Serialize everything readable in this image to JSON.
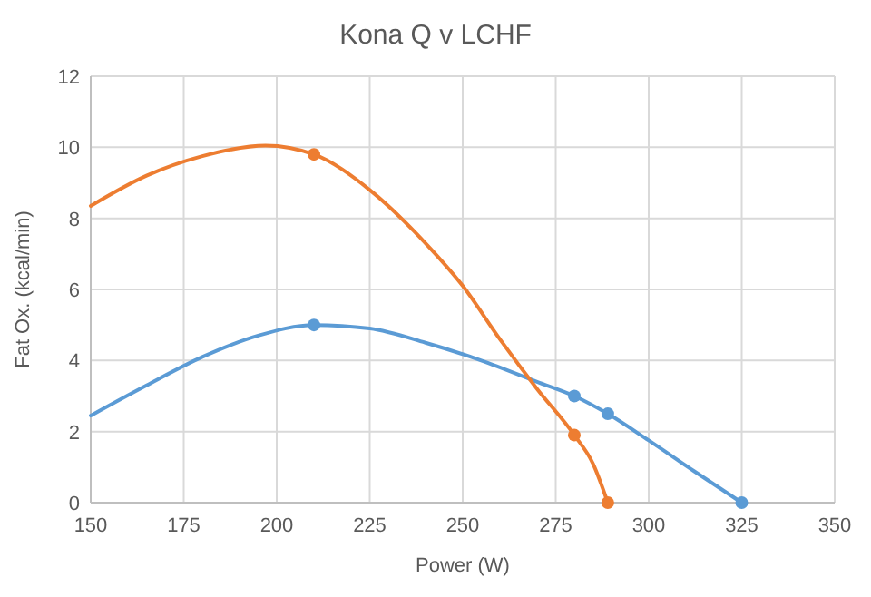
{
  "chart_data": {
    "type": "line",
    "title": "Kona Q v LCHF",
    "xlabel": "Power (W)",
    "ylabel": "Fat Ox. (kcal/min)",
    "xlim": [
      150,
      350
    ],
    "xticks": [
      150,
      175,
      200,
      225,
      250,
      275,
      300,
      325,
      350
    ],
    "ylim": [
      0,
      12
    ],
    "yticks": [
      0,
      2,
      4,
      6,
      8,
      10,
      12
    ],
    "grid": true,
    "line_style": "solid",
    "series": [
      {
        "color": "#5b9bd5",
        "marker": "none",
        "x": [
          150,
          165,
          180,
          195,
          210,
          225,
          240,
          255,
          270,
          280,
          289,
          300,
          312,
          325
        ],
        "values": [
          2.45,
          3.3,
          4.1,
          4.7,
          5,
          4.9,
          4.5,
          4.0,
          3.4,
          3,
          2.5,
          1.75,
          0.9,
          0
        ]
      },
      {
        "color": "#ed7d31",
        "marker": "none",
        "x": [
          150,
          165,
          180,
          197,
          210,
          225,
          240,
          250,
          260,
          270,
          280,
          285,
          289
        ],
        "values": [
          8.35,
          9.2,
          9.75,
          10.05,
          9.8,
          8.8,
          7.3,
          6.1,
          4.6,
          3.2,
          1.9,
          1.1,
          0
        ]
      },
      {
        "type": "scatter",
        "color": "#5b9bd5",
        "marker": "circle",
        "x": [
          210,
          280,
          289,
          325
        ],
        "values": [
          5,
          3,
          2.5,
          0
        ]
      },
      {
        "type": "scatter",
        "color": "#ed7d31",
        "marker": "circle",
        "x": [
          210,
          280,
          289
        ],
        "values": [
          9.8,
          1.9,
          0
        ]
      }
    ]
  }
}
